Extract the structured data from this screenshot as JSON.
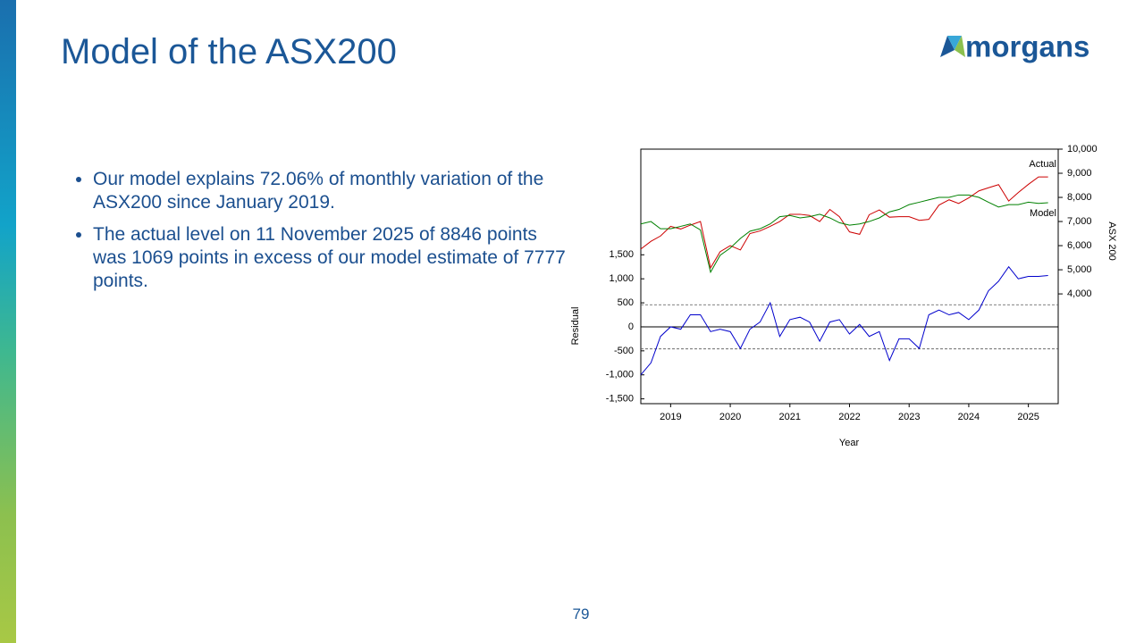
{
  "title": "Model of the ASX200",
  "logo": "morgans",
  "bullets": [
    "Our model explains 72.06% of monthly variation of the ASX200 since January 2019.",
    "The actual level on 11 November 2025 of 8846 points was 1069 points in excess of our model estimate of 7777 points."
  ],
  "page_number": "79",
  "chart_data": {
    "type": "line",
    "xlabel": "Year",
    "ylabel": "Residual",
    "y2label": "ASX 200",
    "x": [
      2019.0,
      2019.17,
      2019.33,
      2019.5,
      2019.67,
      2019.83,
      2020.0,
      2020.17,
      2020.33,
      2020.5,
      2020.67,
      2020.83,
      2021.0,
      2021.17,
      2021.33,
      2021.5,
      2021.67,
      2021.83,
      2022.0,
      2022.17,
      2022.33,
      2022.5,
      2022.67,
      2022.83,
      2023.0,
      2023.17,
      2023.33,
      2023.5,
      2023.67,
      2023.83,
      2024.0,
      2024.17,
      2024.33,
      2024.5,
      2024.67,
      2024.83,
      2025.0,
      2025.17,
      2025.33,
      2025.5,
      2025.67,
      2025.83
    ],
    "xlim": [
      2019,
      2026
    ],
    "xticks": [
      {
        "value": 2019.5,
        "label": "2019"
      },
      {
        "value": 2020.5,
        "label": "2020"
      },
      {
        "value": 2021.5,
        "label": "2021"
      },
      {
        "value": 2022.5,
        "label": "2022"
      },
      {
        "value": 2023.5,
        "label": "2023"
      },
      {
        "value": 2024.5,
        "label": "2024"
      },
      {
        "value": 2025.5,
        "label": "2025"
      }
    ],
    "ylim": [
      -1600,
      3700
    ],
    "yticks": [
      {
        "value": -1500,
        "label": "-1,500"
      },
      {
        "value": -1000,
        "label": "-1,000"
      },
      -500,
      0,
      500,
      {
        "value": 1000,
        "label": "1,000"
      },
      {
        "value": 1500,
        "label": "1,500"
      }
    ],
    "y2lim": [
      -550,
      10000
    ],
    "y2ticks": [
      {
        "value": 4000,
        "label": "4,000"
      },
      {
        "value": 5000,
        "label": "5,000"
      },
      {
        "value": 6000,
        "label": "6,000"
      },
      {
        "value": 7000,
        "label": "7,000"
      },
      {
        "value": 8000,
        "label": "8,000"
      },
      {
        "value": 9000,
        "label": "9,000"
      },
      {
        "value": 10000,
        "label": "10,000"
      }
    ],
    "band_lines": [
      460,
      -460
    ],
    "series": [
      {
        "name": "Actual",
        "color": "#cc0000",
        "axis": "y2",
        "values": [
          5860,
          6180,
          6400,
          6800,
          6690,
          6850,
          7000,
          5080,
          5750,
          6000,
          5820,
          6500,
          6610,
          6800,
          7000,
          7300,
          7300,
          7250,
          7000,
          7500,
          7200,
          6570,
          6470,
          7280,
          7480,
          7180,
          7200,
          7200,
          7050,
          7090,
          7680,
          7900,
          7750,
          7980,
          8270,
          8400,
          8530,
          7850,
          8200,
          8540,
          8850,
          8846
        ]
      },
      {
        "name": "Model",
        "color": "#008000",
        "axis": "y2",
        "values": [
          6900,
          7000,
          6700,
          6700,
          6800,
          6900,
          6650,
          4900,
          5600,
          5900,
          6300,
          6600,
          6700,
          6900,
          7200,
          7250,
          7150,
          7200,
          7300,
          7150,
          6950,
          6850,
          6900,
          7000,
          7150,
          7400,
          7500,
          7700,
          7800,
          7900,
          8000,
          8000,
          8100,
          8100,
          8000,
          7800,
          7600,
          7700,
          7700,
          7800,
          7750,
          7777
        ]
      },
      {
        "color": "#0000cc",
        "values": [
          -1000,
          -750,
          -200,
          0,
          -50,
          250,
          250,
          -100,
          -50,
          -100,
          -450,
          -50,
          100,
          500,
          -200,
          150,
          200,
          100,
          -300,
          100,
          150,
          -150,
          50,
          -200,
          -100,
          -700,
          -250,
          -250,
          -450,
          250,
          350,
          250,
          300,
          150,
          350,
          750,
          950,
          1250,
          1000,
          1050,
          1050,
          1069
        ]
      }
    ]
  }
}
